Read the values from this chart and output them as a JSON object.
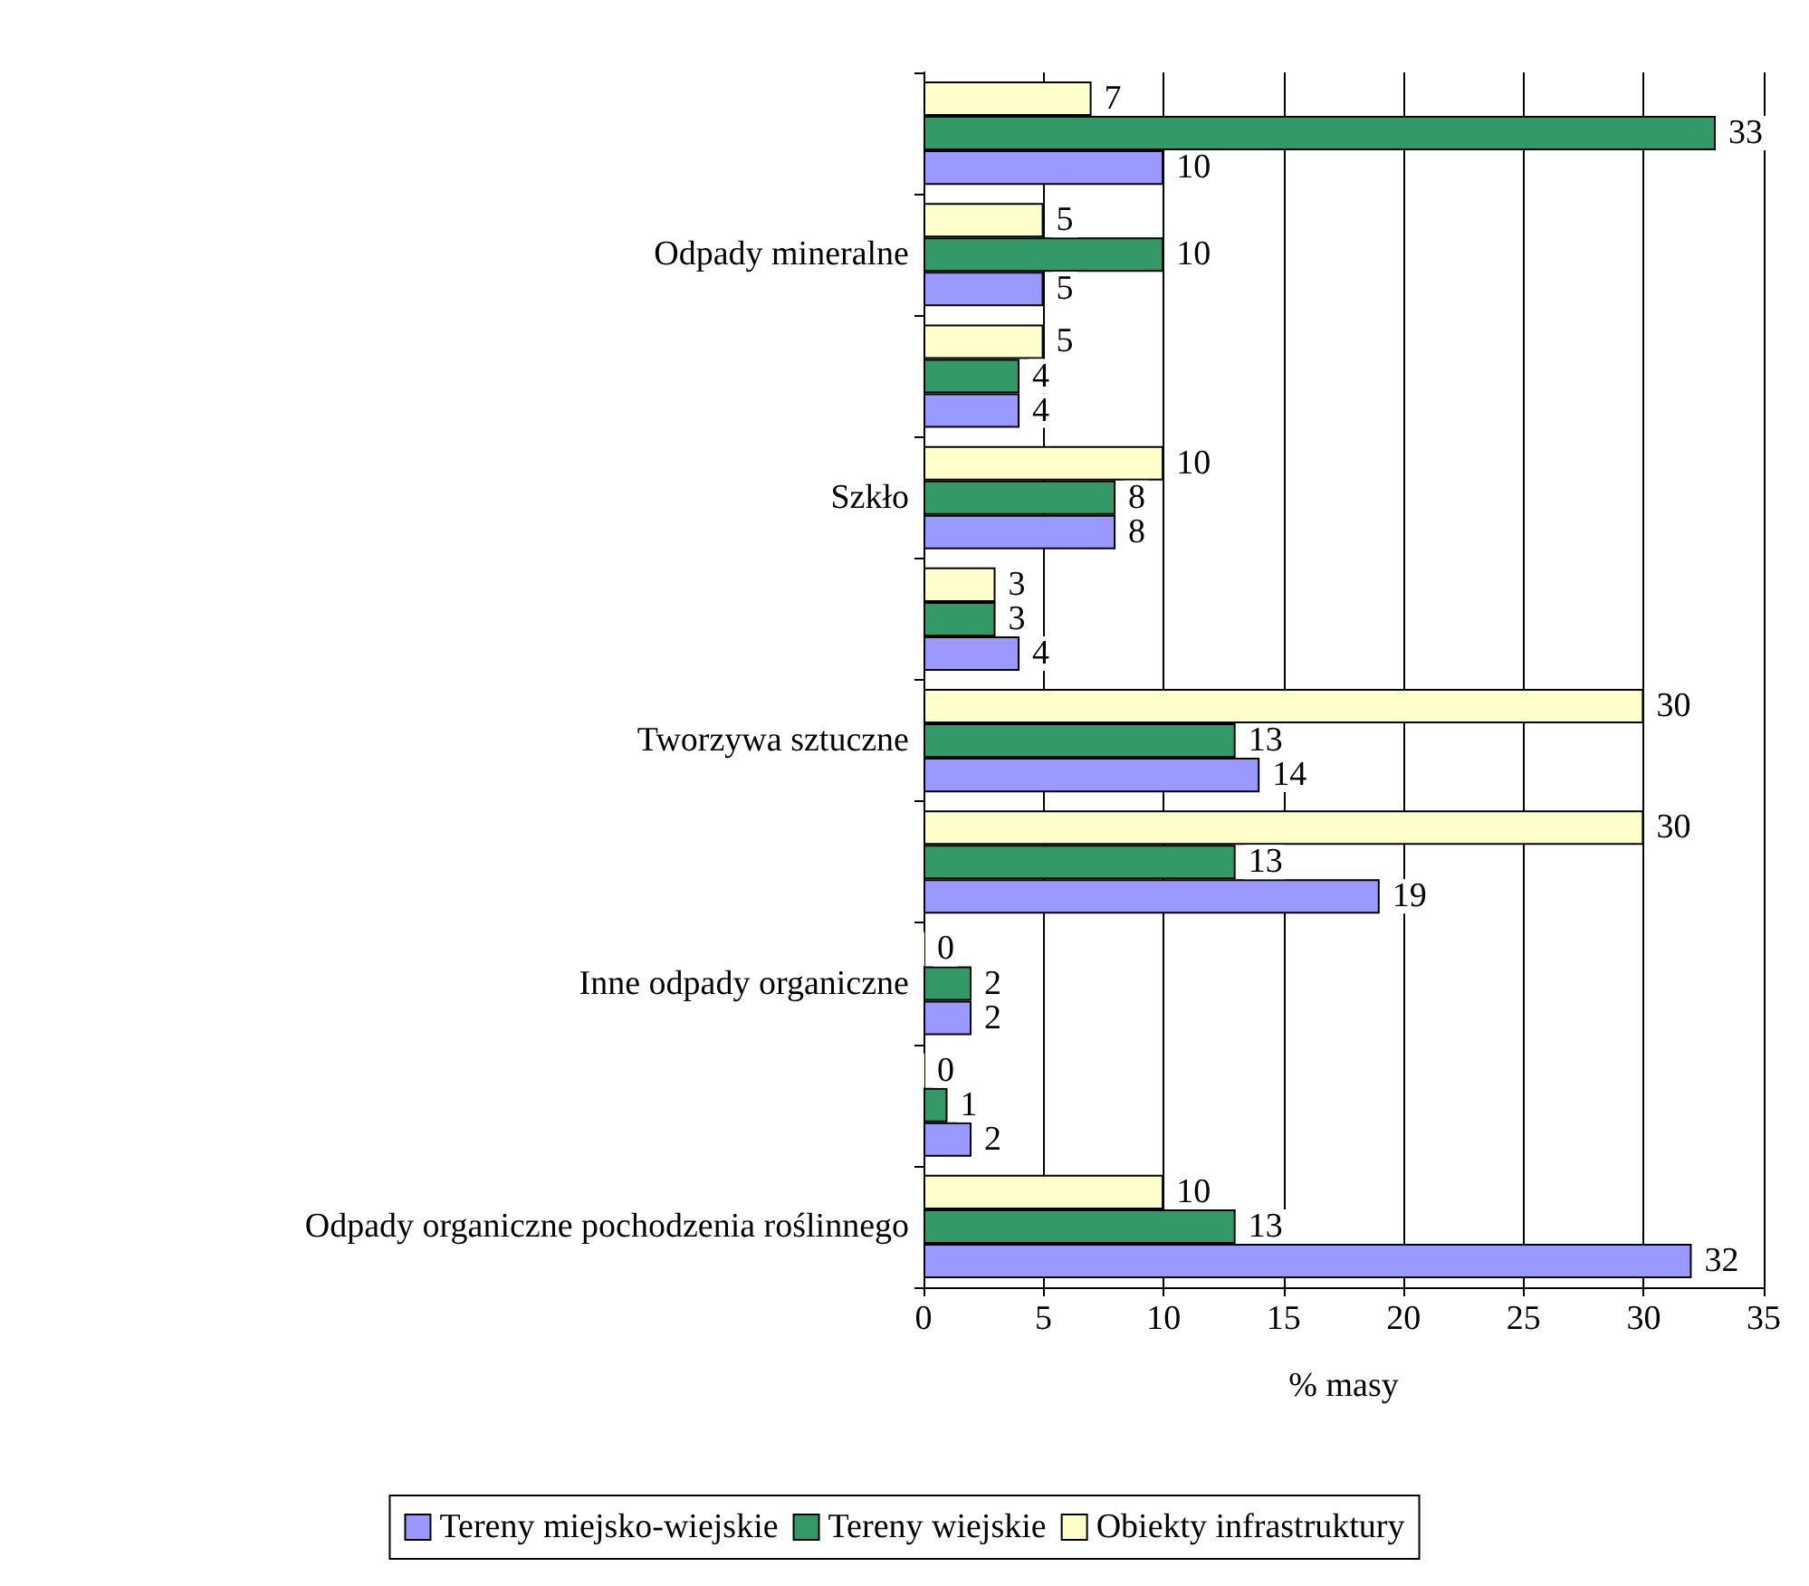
{
  "chart_data": {
    "type": "bar",
    "orientation": "horizontal",
    "xlabel": "% masy",
    "categories": [
      null,
      "Odpady mineralne",
      null,
      "Szkło",
      null,
      "Tworzywa sztuczne",
      null,
      "Inne odpady organiczne",
      null,
      "Odpady organiczne pochodzenia roślinnego"
    ],
    "series": [
      {
        "name": "Tereny miejsko-wiejskie",
        "color": "#9999ff",
        "values": [
          10,
          5,
          4,
          8,
          4,
          14,
          19,
          2,
          2,
          32
        ]
      },
      {
        "name": "Tereny wiejskie",
        "color": "#339966",
        "values": [
          33,
          10,
          4,
          8,
          3,
          13,
          13,
          2,
          1,
          13
        ]
      },
      {
        "name": "Obiekty infrastruktury",
        "color": "#ffffcc",
        "values": [
          7,
          5,
          5,
          10,
          3,
          30,
          30,
          0,
          0,
          10
        ]
      }
    ],
    "xlim": [
      0,
      35
    ],
    "xticks": [
      0,
      5,
      10,
      15,
      20,
      25,
      30,
      35
    ],
    "grid": "x",
    "legend": "bottom",
    "data_labels": true
  }
}
